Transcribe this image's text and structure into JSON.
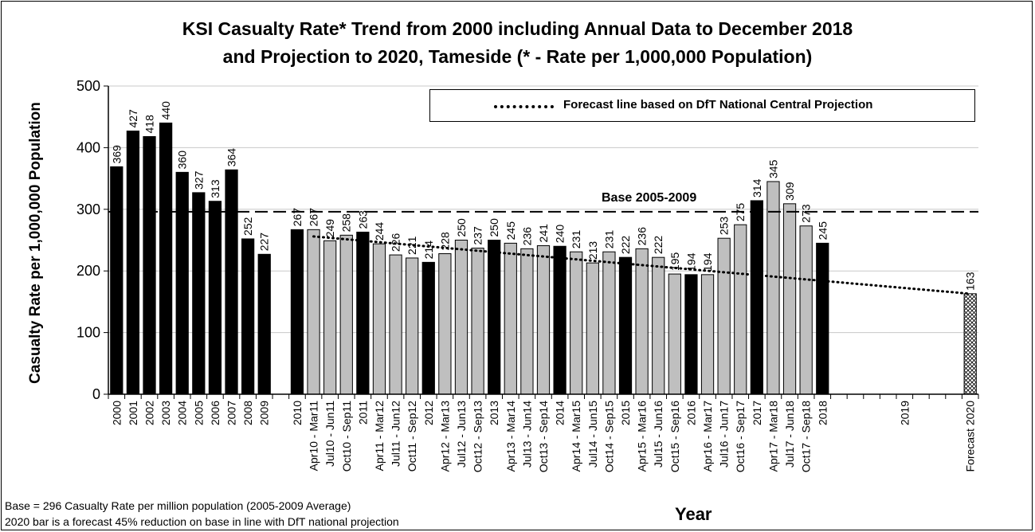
{
  "title_lines": [
    "KSI Casualty Rate* Trend from 2000 including Annual Data to December 2018",
    "and Projection to 2020, Tameside (* - Rate per 1,000,000 Population)"
  ],
  "footnotes": [
    "Base = 296 Casualty Rate per million population (2005-2009 Average)",
    "2020 bar is a forecast 45% reduction on base in line with DfT national  projection"
  ],
  "legend": {
    "label": "Forecast line based on DfT National Central Projection"
  },
  "base_line": {
    "label": "Base 2005-2009",
    "value": 296
  },
  "chart_data": {
    "type": "bar",
    "title": "KSI Casualty Rate* Trend from 2000 including Annual Data to December 2018 and Projection to 2020, Tameside (* - Rate per 1,000,000 Population)",
    "xlabel": "Year",
    "ylabel": "Casualty Rate per 1,000,000 Population",
    "ylim": [
      0,
      500
    ],
    "yticks": [
      0,
      100,
      200,
      300,
      400,
      500
    ],
    "grid": true,
    "legend_position": "top-right",
    "colors": {
      "annual": "#000000",
      "rolling": "#bfbfbf",
      "forecast_fill": "#ffffff"
    },
    "categories": [
      "2000",
      "2001",
      "2002",
      "2003",
      "2004",
      "2005",
      "2006",
      "2007",
      "2008",
      "2009",
      "",
      "2010",
      "Apr10 - Mar11",
      "Jul10 - Jun11",
      "Oct10 - Sep11",
      "2011",
      "Apr11 - Mar12",
      "Jul11 - Jun12",
      "Oct11 - Sep12",
      "2012",
      "Apr12 - Mar13",
      "Jul12 - Jun13",
      "Oct12 - Sep13",
      "2013",
      "Apr13 - Mar14",
      "Jul13 - Jun14",
      "Oct13 - Sep14",
      "2014",
      "Apr14 - Mar15",
      "Jul14 - Jun15",
      "Oct14 - Sep15",
      "2015",
      "Apr15 - Mar16",
      "Jul15 - Jun16",
      "Oct15 - Sep16",
      "2016",
      "Apr16 - Mar17",
      "Jul16 - Jun17",
      "Oct16 - Sep17",
      "2017",
      "Apr17 - Mar18",
      "Jul17 - Jun18",
      "Oct17 - Sep18",
      "2018",
      "",
      "",
      "",
      "",
      "2019",
      "",
      "",
      "",
      "Forecast 2020"
    ],
    "values": [
      369,
      427,
      418,
      440,
      360,
      327,
      313,
      364,
      252,
      227,
      null,
      267,
      267,
      249,
      258,
      263,
      244,
      226,
      221,
      214,
      228,
      250,
      237,
      250,
      245,
      236,
      241,
      240,
      231,
      213,
      231,
      222,
      236,
      222,
      195,
      194,
      194,
      253,
      275,
      314,
      345,
      309,
      273,
      245,
      null,
      null,
      null,
      null,
      null,
      null,
      null,
      null,
      163
    ],
    "bar_kind": [
      "annual",
      "annual",
      "annual",
      "annual",
      "annual",
      "annual",
      "annual",
      "annual",
      "annual",
      "annual",
      null,
      "annual",
      "rolling",
      "rolling",
      "rolling",
      "annual",
      "rolling",
      "rolling",
      "rolling",
      "annual",
      "rolling",
      "rolling",
      "rolling",
      "annual",
      "rolling",
      "rolling",
      "rolling",
      "annual",
      "rolling",
      "rolling",
      "rolling",
      "annual",
      "rolling",
      "rolling",
      "rolling",
      "annual",
      "rolling",
      "rolling",
      "rolling",
      "annual",
      "rolling",
      "rolling",
      "rolling",
      "annual",
      null,
      null,
      null,
      null,
      null,
      null,
      null,
      null,
      "forecast"
    ],
    "forecast_line": {
      "name": "Forecast line based on DfT National Central Projection",
      "start_category_index": 12,
      "start_value": 256,
      "end_category_index": 52,
      "end_value": 163
    }
  }
}
